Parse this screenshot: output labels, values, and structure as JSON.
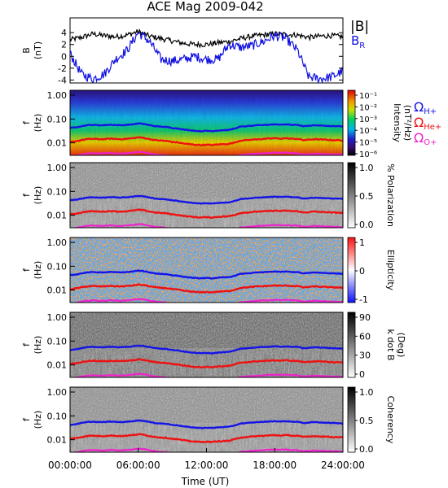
{
  "title": "ACE Mag 2009-042",
  "chart_data": [
    {
      "type": "line",
      "panel": "B",
      "ylabel": "B",
      "yunit": "(nT)",
      "ylim": [
        -4.5,
        6.5
      ],
      "yticks": [
        "4",
        "2",
        "0",
        "-2",
        "-4"
      ],
      "legend": [
        "|B|",
        "B"
      ],
      "legend_sub": "R",
      "colors": {
        "|B|": "#000000",
        "B_R": "#1010e0"
      },
      "series": [
        {
          "name": "|B|",
          "x": [
            0,
            1,
            2,
            3,
            4,
            5,
            6,
            7,
            8,
            9,
            10,
            11,
            12,
            13,
            14,
            15,
            16,
            17,
            18,
            19,
            20,
            21,
            22,
            23,
            24
          ],
          "values": [
            2.8,
            3.2,
            3.8,
            3.5,
            3.3,
            3.6,
            4.2,
            3.4,
            3.0,
            2.6,
            2.2,
            2.0,
            2.0,
            2.3,
            2.5,
            3.0,
            3.4,
            3.6,
            3.8,
            3.7,
            3.6,
            3.2,
            3.4,
            3.5,
            3.3
          ]
        },
        {
          "name": "B_R",
          "x": [
            0,
            1,
            2,
            3,
            4,
            5,
            6,
            7,
            8,
            9,
            10,
            11,
            12,
            13,
            14,
            15,
            16,
            17,
            18,
            19,
            20,
            21,
            22,
            23,
            24
          ],
          "values": [
            0.5,
            -3.0,
            -3.8,
            -3.0,
            -0.5,
            1.0,
            4.0,
            2.5,
            -0.5,
            -0.8,
            -0.5,
            0.0,
            -0.5,
            -0.5,
            2.0,
            1.5,
            1.8,
            2.5,
            3.5,
            3.0,
            1.0,
            -3.5,
            -3.8,
            -3.5,
            -2.5
          ]
        }
      ]
    },
    {
      "type": "heatmap",
      "panel": "spectrum",
      "ylabel": "f",
      "yunit": "(Hz)",
      "ylog": true,
      "ylim": [
        0.003,
        1.6
      ],
      "yticks": [
        "1.00",
        "0.10",
        "0.01"
      ],
      "colorbar": {
        "title": "Intensity",
        "unit": "(nT²/Hz)",
        "ticks": [
          "10⁻¹",
          "10⁻²",
          "10⁻³",
          "10⁻⁴",
          "10⁻⁵",
          "10⁻⁶"
        ]
      },
      "overlays": [
        "Ω_H+",
        "Ω_He+",
        "Ω_O+"
      ]
    },
    {
      "type": "heatmap",
      "panel": "polarization",
      "ylabel": "f",
      "yunit": "(Hz)",
      "ylog": true,
      "ylim": [
        0.003,
        1.6
      ],
      "yticks": [
        "1.00",
        "0.10",
        "0.01"
      ],
      "colorbar": {
        "title": "% Polarization",
        "ticks": [
          "1.0",
          "0.5",
          "0.0"
        ]
      }
    },
    {
      "type": "heatmap",
      "panel": "ellipticity",
      "ylabel": "f",
      "yunit": "(Hz)",
      "ylog": true,
      "ylim": [
        0.003,
        1.6
      ],
      "yticks": [
        "1.00",
        "0.10",
        "0.01"
      ],
      "colorbar": {
        "title": "Ellipticity",
        "ticks": [
          "1",
          "0",
          "-1"
        ]
      }
    },
    {
      "type": "heatmap",
      "panel": "k_dot_B",
      "ylabel": "f",
      "yunit": "(Hz)",
      "ylog": true,
      "ylim": [
        0.003,
        1.6
      ],
      "yticks": [
        "1.00",
        "0.10",
        "0.01"
      ],
      "colorbar": {
        "title": "k dot B",
        "unit": "(Deg)",
        "ticks": [
          "90",
          "60",
          "30",
          "0"
        ]
      }
    },
    {
      "type": "heatmap",
      "panel": "coherency",
      "ylabel": "f",
      "yunit": "(Hz)",
      "ylog": true,
      "ylim": [
        0.003,
        1.6
      ],
      "yticks": [
        "1.00",
        "0.10",
        "0.01"
      ],
      "colorbar": {
        "title": "Coherency",
        "ticks": [
          "1.0",
          "0.5",
          "0.0"
        ]
      }
    }
  ],
  "x_axis": {
    "label": "Time (UT)",
    "ticks": [
      "00:00:00",
      "06:00:00",
      "12:00:00",
      "18:00:00",
      "24:00:00"
    ],
    "range_hours": [
      0,
      24
    ]
  },
  "legend": {
    "omega": "Ω",
    "h_sub": "H+",
    "he_sub": "He+",
    "o_sub": "O+",
    "colors": {
      "H+": "#1414e6",
      "He+": "#ee1111",
      "O+": "#ee22cc"
    }
  },
  "gyro_curves": {
    "x": [
      0,
      0.5,
      1,
      1.5,
      2,
      2.5,
      3,
      3.5,
      4,
      4.5,
      5,
      5.5,
      6,
      6.5,
      7,
      7.5,
      8,
      8.5,
      9,
      9.5,
      10,
      10.5,
      11,
      11.5,
      12,
      12.5,
      13,
      13.5,
      14,
      14.5,
      15,
      15.5,
      16,
      16.5,
      17,
      17.5,
      18,
      18.5,
      19,
      19.5,
      20,
      20.5,
      21,
      21.5,
      22,
      22.5,
      23,
      23.5,
      24
    ],
    "H+": [
      0.042,
      0.045,
      0.05,
      0.055,
      0.057,
      0.055,
      0.055,
      0.058,
      0.056,
      0.055,
      0.057,
      0.06,
      0.065,
      0.062,
      0.055,
      0.05,
      0.048,
      0.046,
      0.042,
      0.04,
      0.036,
      0.034,
      0.032,
      0.031,
      0.032,
      0.031,
      0.033,
      0.034,
      0.035,
      0.04,
      0.048,
      0.05,
      0.052,
      0.055,
      0.056,
      0.058,
      0.06,
      0.058,
      0.06,
      0.057,
      0.057,
      0.05,
      0.052,
      0.055,
      0.053,
      0.052,
      0.05,
      0.05,
      0.048
    ]
  }
}
